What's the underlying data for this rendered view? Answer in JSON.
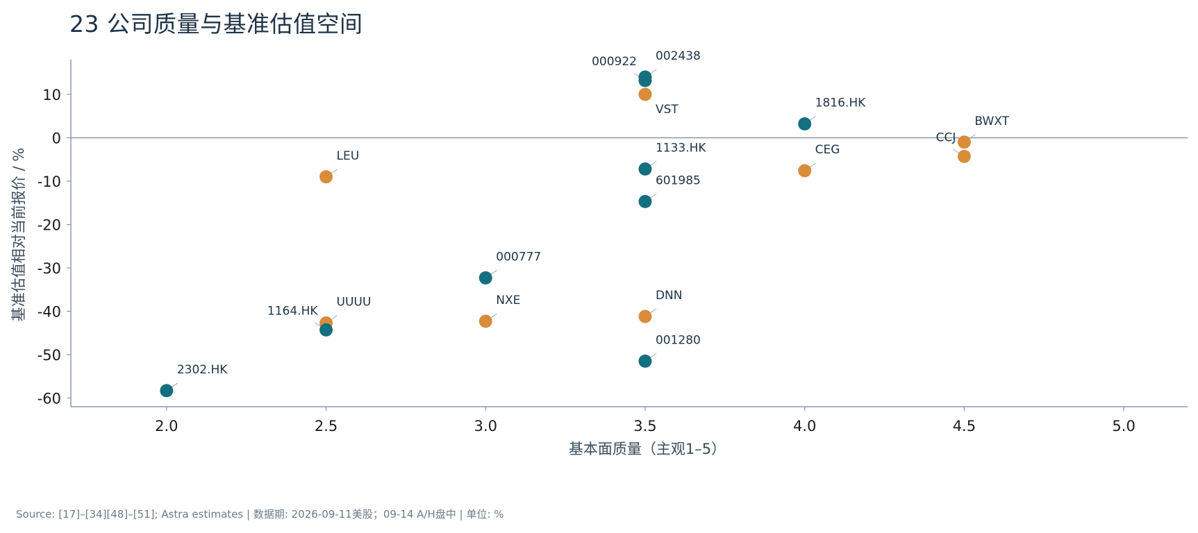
{
  "title": "23  公司质量与基准估值空间",
  "source": "Source: [17]–[34][48]–[51]; Astra estimates | 数据期: 2026-09-11美股；09-14 A/H盘中 | 单位: %",
  "colors": {
    "teal": "#146f7f",
    "orange": "#d98c3a",
    "axis": "#8a9aab",
    "zero_line": "#8a98a8"
  },
  "chart_data": {
    "type": "scatter",
    "title": "23  公司质量与基准估值空间",
    "xlabel": "基本面质量（主观1–5）",
    "ylabel": "基准估值相对当前报价 / %",
    "xlim": [
      1.7,
      5.2
    ],
    "ylim": [
      -62,
      18
    ],
    "x_ticks": [
      2.0,
      2.5,
      3.0,
      3.5,
      4.0,
      4.5,
      5.0
    ],
    "x_tick_labels": [
      "2.0",
      "2.5",
      "3.0",
      "3.5",
      "4.0",
      "4.5",
      "5.0"
    ],
    "y_ticks": [
      10,
      0,
      -10,
      -20,
      -30,
      -40,
      -50,
      -60
    ],
    "y_tick_labels": [
      "10",
      "0",
      "-10",
      "-20",
      "-30",
      "-40",
      "-50",
      "-60"
    ],
    "reference_line_y": 0,
    "grid": false,
    "points": [
      {
        "label": "002438",
        "x": 3.5,
        "y": 14.0,
        "color": "teal",
        "label_side": "right"
      },
      {
        "label": "000922",
        "x": 3.5,
        "y": 13.2,
        "color": "teal",
        "label_side": "left"
      },
      {
        "label": "VST",
        "x": 3.5,
        "y": 10.0,
        "color": "orange",
        "label_side": "below-right"
      },
      {
        "label": "1816.HK",
        "x": 4.0,
        "y": 3.2,
        "color": "teal",
        "label_side": "right"
      },
      {
        "label": "BWXT",
        "x": 4.5,
        "y": -1.0,
        "color": "orange",
        "label_side": "right"
      },
      {
        "label": "CCJ",
        "x": 4.5,
        "y": -4.3,
        "color": "orange",
        "label_side": "left"
      },
      {
        "label": "CEG",
        "x": 4.0,
        "y": -7.6,
        "color": "orange",
        "label_side": "right"
      },
      {
        "label": "1133.HK",
        "x": 3.5,
        "y": -7.2,
        "color": "teal",
        "label_side": "right"
      },
      {
        "label": "LEU",
        "x": 2.5,
        "y": -9.0,
        "color": "orange",
        "label_side": "right"
      },
      {
        "label": "601985",
        "x": 3.5,
        "y": -14.7,
        "color": "teal",
        "label_side": "right"
      },
      {
        "label": "000777",
        "x": 3.0,
        "y": -32.3,
        "color": "teal",
        "label_side": "right"
      },
      {
        "label": "DNN",
        "x": 3.5,
        "y": -41.2,
        "color": "orange",
        "label_side": "right"
      },
      {
        "label": "NXE",
        "x": 3.0,
        "y": -42.3,
        "color": "orange",
        "label_side": "right"
      },
      {
        "label": "UUUU",
        "x": 2.5,
        "y": -42.7,
        "color": "orange",
        "label_side": "right"
      },
      {
        "label": "1164.HK",
        "x": 2.5,
        "y": -44.3,
        "color": "teal",
        "label_side": "left"
      },
      {
        "label": "001280",
        "x": 3.5,
        "y": -51.5,
        "color": "teal",
        "label_side": "right"
      },
      {
        "label": "2302.HK",
        "x": 2.0,
        "y": -58.3,
        "color": "teal",
        "label_side": "right"
      }
    ]
  }
}
